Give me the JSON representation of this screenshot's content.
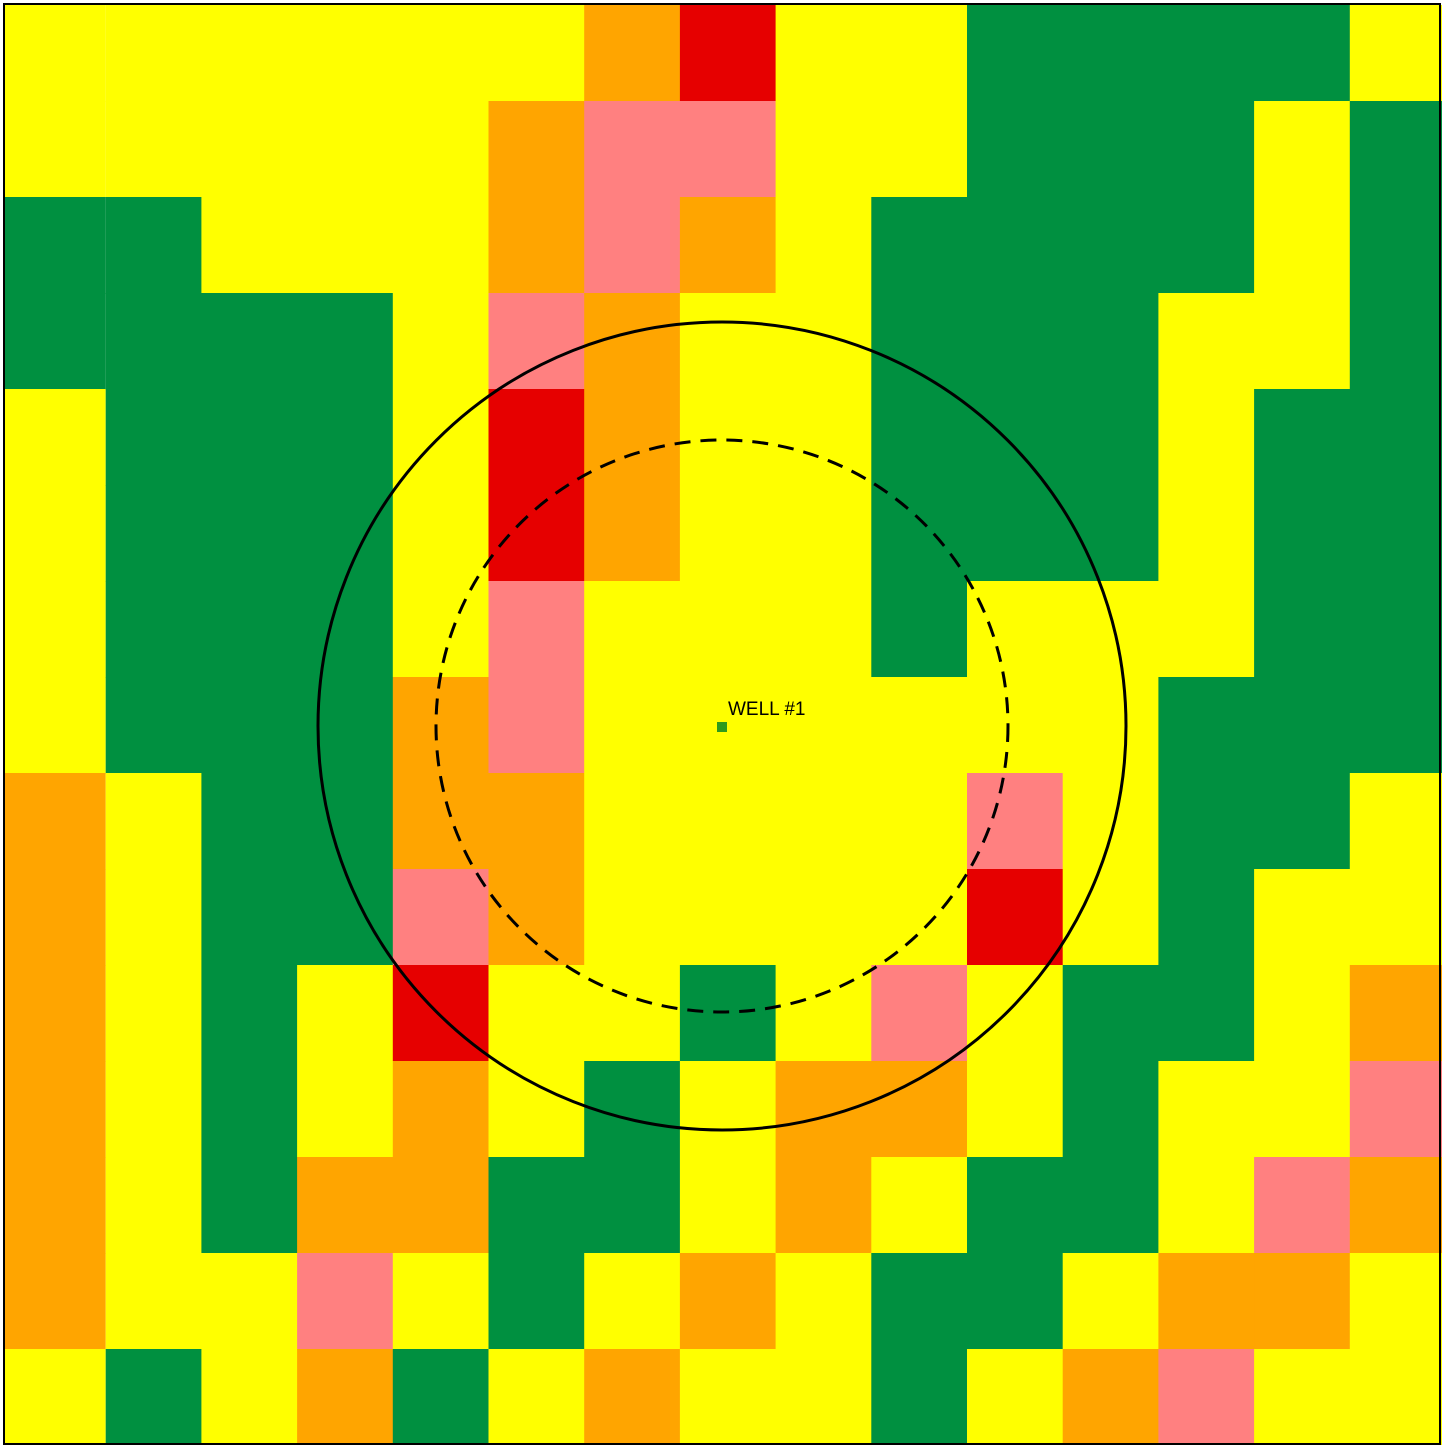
{
  "well": {
    "label": "WELL #1"
  }
}
